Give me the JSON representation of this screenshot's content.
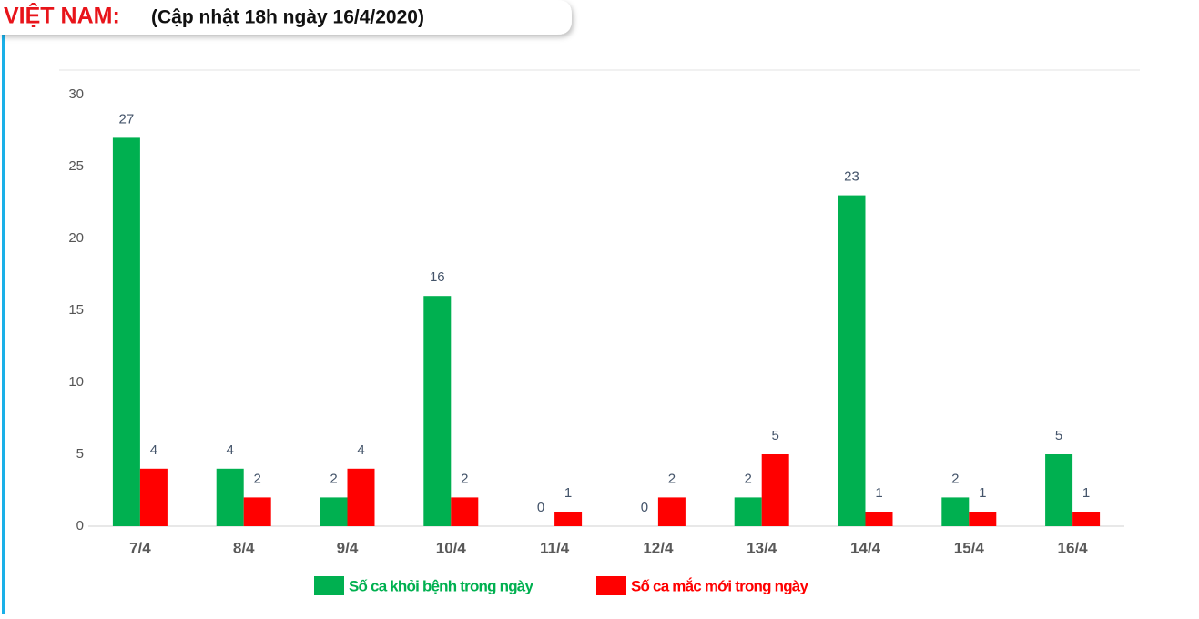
{
  "chart_data": {
    "type": "bar",
    "title": "VIỆT NAM:",
    "subtitle": "(Cập nhật 18h ngày 16/4/2020)",
    "categories": [
      "7/4",
      "8/4",
      "9/4",
      "10/4",
      "11/4",
      "12/4",
      "13/4",
      "14/4",
      "15/4",
      "16/4"
    ],
    "series": [
      {
        "name": "Số ca khỏi bệnh trong ngày",
        "color": "#00b050",
        "values": [
          27,
          4,
          2,
          16,
          0,
          0,
          2,
          23,
          2,
          5
        ]
      },
      {
        "name": "Số ca mắc mới trong ngày",
        "color": "#ff0000",
        "values": [
          4,
          2,
          4,
          2,
          1,
          2,
          5,
          1,
          1,
          1
        ]
      }
    ],
    "ylim": [
      0,
      30
    ],
    "yticks": [
      0,
      5,
      10,
      15,
      20,
      25,
      30
    ],
    "grid": false,
    "legend": "bottom"
  }
}
